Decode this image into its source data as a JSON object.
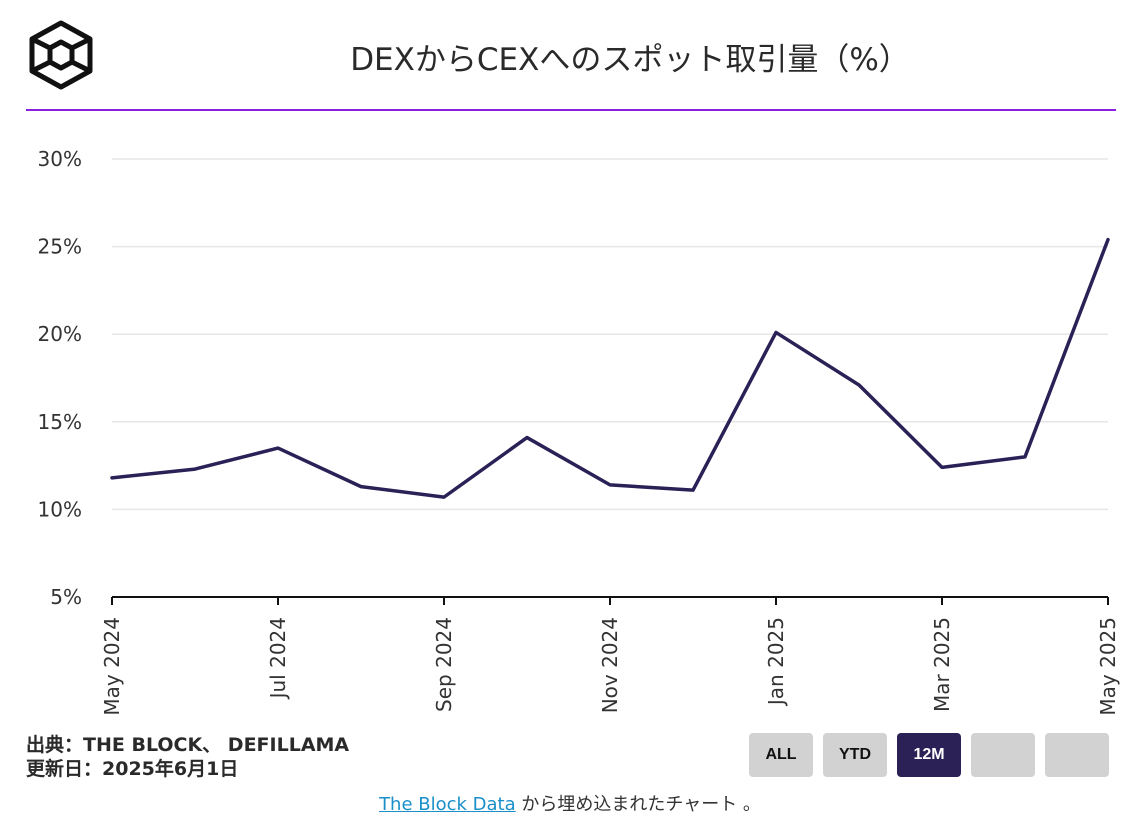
{
  "header": {
    "title": "DEXからCEXへのスポット取引量（%）"
  },
  "source": {
    "line1": "出典：THE BLOCK、 DEFILLAMA",
    "line2": "更新日：2025年6月1日"
  },
  "range_buttons": [
    {
      "label": "ALL",
      "active": false
    },
    {
      "label": "YTD",
      "active": false
    },
    {
      "label": "12M",
      "active": true
    },
    {
      "label": "",
      "active": false
    },
    {
      "label": "",
      "active": false
    }
  ],
  "footer": {
    "link_text": "The Block Data",
    "suffix": " から埋め込まれたチャート 。"
  },
  "colors": {
    "line": "#2b2157",
    "accent_rule": "#8a1fe0",
    "active_button": "#2b2157",
    "link": "#1a8fc9"
  },
  "chart_data": {
    "type": "line",
    "title": "DEXからCEXへのスポット取引量（%）",
    "xlabel": "",
    "ylabel": "",
    "ylim": [
      5,
      30
    ],
    "y_ticks": [
      "5%",
      "10%",
      "15%",
      "20%",
      "25%",
      "30%"
    ],
    "x_tick_labels": [
      "May 2024",
      "Jul 2024",
      "Sep 2024",
      "Nov 2024",
      "Jan 2025",
      "Mar 2025",
      "May 2025"
    ],
    "x": [
      "2024-05",
      "2024-06",
      "2024-07",
      "2024-08",
      "2024-09",
      "2024-10",
      "2024-11",
      "2024-12",
      "2025-01",
      "2025-02",
      "2025-03",
      "2025-04",
      "2025-05"
    ],
    "series": [
      {
        "values": [
          11.8,
          12.3,
          13.5,
          11.3,
          10.7,
          14.1,
          11.4,
          11.1,
          20.1,
          17.1,
          12.4,
          13.0,
          25.4
        ]
      }
    ],
    "grid": true,
    "legend": "none"
  }
}
